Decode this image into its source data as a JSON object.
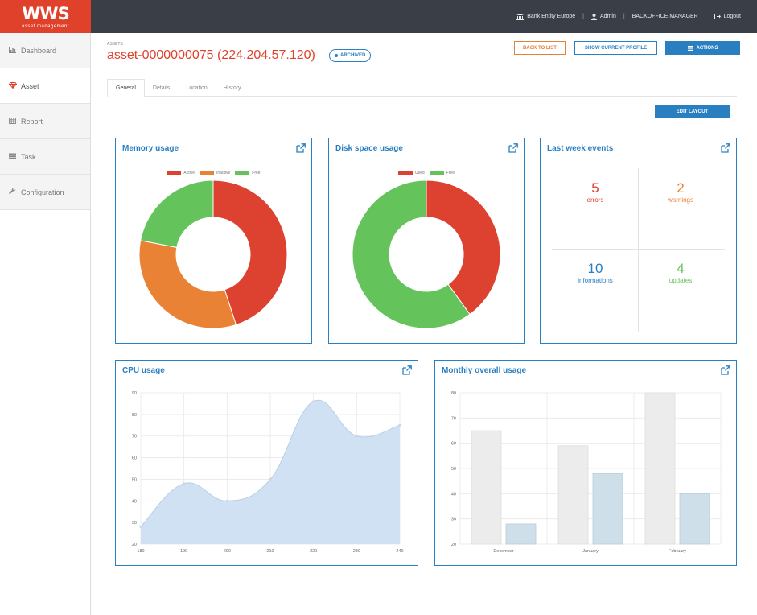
{
  "app": {
    "logo_text": "WWS",
    "logo_subtitle": "asset management"
  },
  "topnav": {
    "entity": "Bank Entity Europe",
    "user": "Admin",
    "role": "BACKOFFICE MANAGER",
    "logout": "Logout"
  },
  "sidebar": {
    "items": [
      {
        "label": "Dashboard",
        "icon": "bar-chart-icon",
        "active": false
      },
      {
        "label": "Asset",
        "icon": "diamond-icon",
        "active": true
      },
      {
        "label": "Report",
        "icon": "table-icon",
        "active": false
      },
      {
        "label": "Task",
        "icon": "tasks-icon",
        "active": false
      },
      {
        "label": "Configuration",
        "icon": "wrench-icon",
        "active": false
      }
    ]
  },
  "header": {
    "breadcrumb": "Assets",
    "title": "asset-0000000075 (224.204.57.120)",
    "status_badge": "ARCHIVED",
    "back_label": "BACK TO LIST",
    "profile_label": "SHOW CURRENT PROFILE",
    "actions_label": "ACTIONS",
    "edit_layout_label": "EDIT LAYOUT"
  },
  "tabs": [
    "General",
    "Details",
    "Location",
    "History"
  ],
  "colors": {
    "accent": "#2a7fc1",
    "brand": "#e0412b",
    "red": "#dd4130",
    "orange": "#ea8236",
    "green": "#65c35c",
    "area": "#cfe1f2"
  },
  "panels": {
    "memory": {
      "title": "Memory usage"
    },
    "disk": {
      "title": "Disk space usage"
    },
    "events": {
      "title": "Last week events"
    },
    "cpu": {
      "title": "CPU usage"
    },
    "monthly": {
      "title": "Monthly overall usage"
    }
  },
  "events": {
    "errors": {
      "value": "5",
      "label": "errors"
    },
    "warnings": {
      "value": "2",
      "label": "warnings"
    },
    "informations": {
      "value": "10",
      "label": "informations"
    },
    "updates": {
      "value": "4",
      "label": "updates"
    }
  },
  "chart_data": [
    {
      "type": "pie",
      "title": "Memory usage",
      "labels": [
        "Active",
        "Inactive",
        "Free"
      ],
      "values": [
        45,
        33,
        22
      ],
      "legend": "top"
    },
    {
      "type": "pie",
      "title": "Disk space usage",
      "labels": [
        "Used",
        "Free"
      ],
      "values": [
        40,
        60
      ],
      "legend": "top"
    },
    {
      "type": "area",
      "title": "CPU usage",
      "x": [
        180,
        190,
        200,
        210,
        220,
        230,
        240
      ],
      "y": [
        28,
        48,
        40,
        50,
        86,
        70,
        75
      ],
      "ylim": [
        20,
        90
      ],
      "yticks": [
        20,
        30,
        40,
        50,
        60,
        70,
        80,
        90
      ],
      "grid": true
    },
    {
      "type": "bar",
      "title": "Monthly overall usage",
      "categories": [
        "December",
        "January",
        "February"
      ],
      "series": [
        {
          "values": [
            65,
            59,
            80
          ]
        },
        {
          "values": [
            28,
            48,
            40
          ]
        }
      ],
      "ylim": [
        20,
        80
      ],
      "yticks": [
        20,
        30,
        40,
        50,
        60,
        70,
        80
      ],
      "grid": true
    }
  ]
}
